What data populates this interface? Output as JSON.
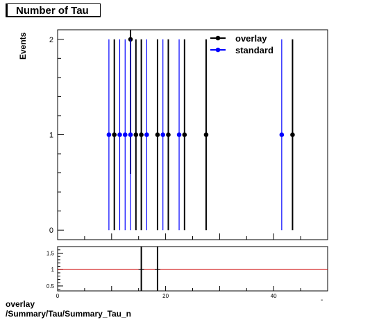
{
  "title": "Number of Tau",
  "y_axis_label": "Events",
  "footer": {
    "line1": "overlay",
    "line2": "/Summary/Tau/Summary_Tau_n"
  },
  "colors": {
    "overlay": "#000000",
    "standard": "#0000ff",
    "ratio_line": "#cc0000"
  },
  "chart_data": [
    {
      "type": "scatter",
      "title": "Number of Tau",
      "ylabel": "Events",
      "xlim": [
        0,
        50
      ],
      "ylim": [
        -0.1,
        2.1
      ],
      "yticks": [
        0,
        1,
        2
      ],
      "legend_position": "top-right",
      "series": [
        {
          "name": "overlay",
          "x": [
            10.5,
            13.5,
            14.5,
            15.5,
            18.5,
            20.5,
            23.5,
            27.5,
            43.5
          ],
          "y": [
            1,
            2,
            1,
            1,
            1,
            1,
            1,
            1,
            1
          ],
          "err": [
            1,
            1.41,
            1,
            1,
            1,
            1,
            1,
            1,
            1
          ]
        },
        {
          "name": "standard",
          "x": [
            9.5,
            11.5,
            12.5,
            13.5,
            16.5,
            19.5,
            22.5,
            41.5
          ],
          "y": [
            1,
            1,
            1,
            1,
            1,
            1,
            1,
            1
          ],
          "err": [
            1,
            1,
            1,
            1,
            1,
            1,
            1,
            1
          ]
        }
      ]
    },
    {
      "type": "scatter",
      "xlim": [
        0,
        50
      ],
      "ylim": [
        0.35,
        1.7
      ],
      "xticks": [
        0,
        20,
        40
      ],
      "yticks": [
        0.5,
        1,
        1.5
      ],
      "reference_line": 1,
      "x": [
        15.5,
        18.5
      ],
      "y": [
        1,
        1
      ]
    }
  ]
}
